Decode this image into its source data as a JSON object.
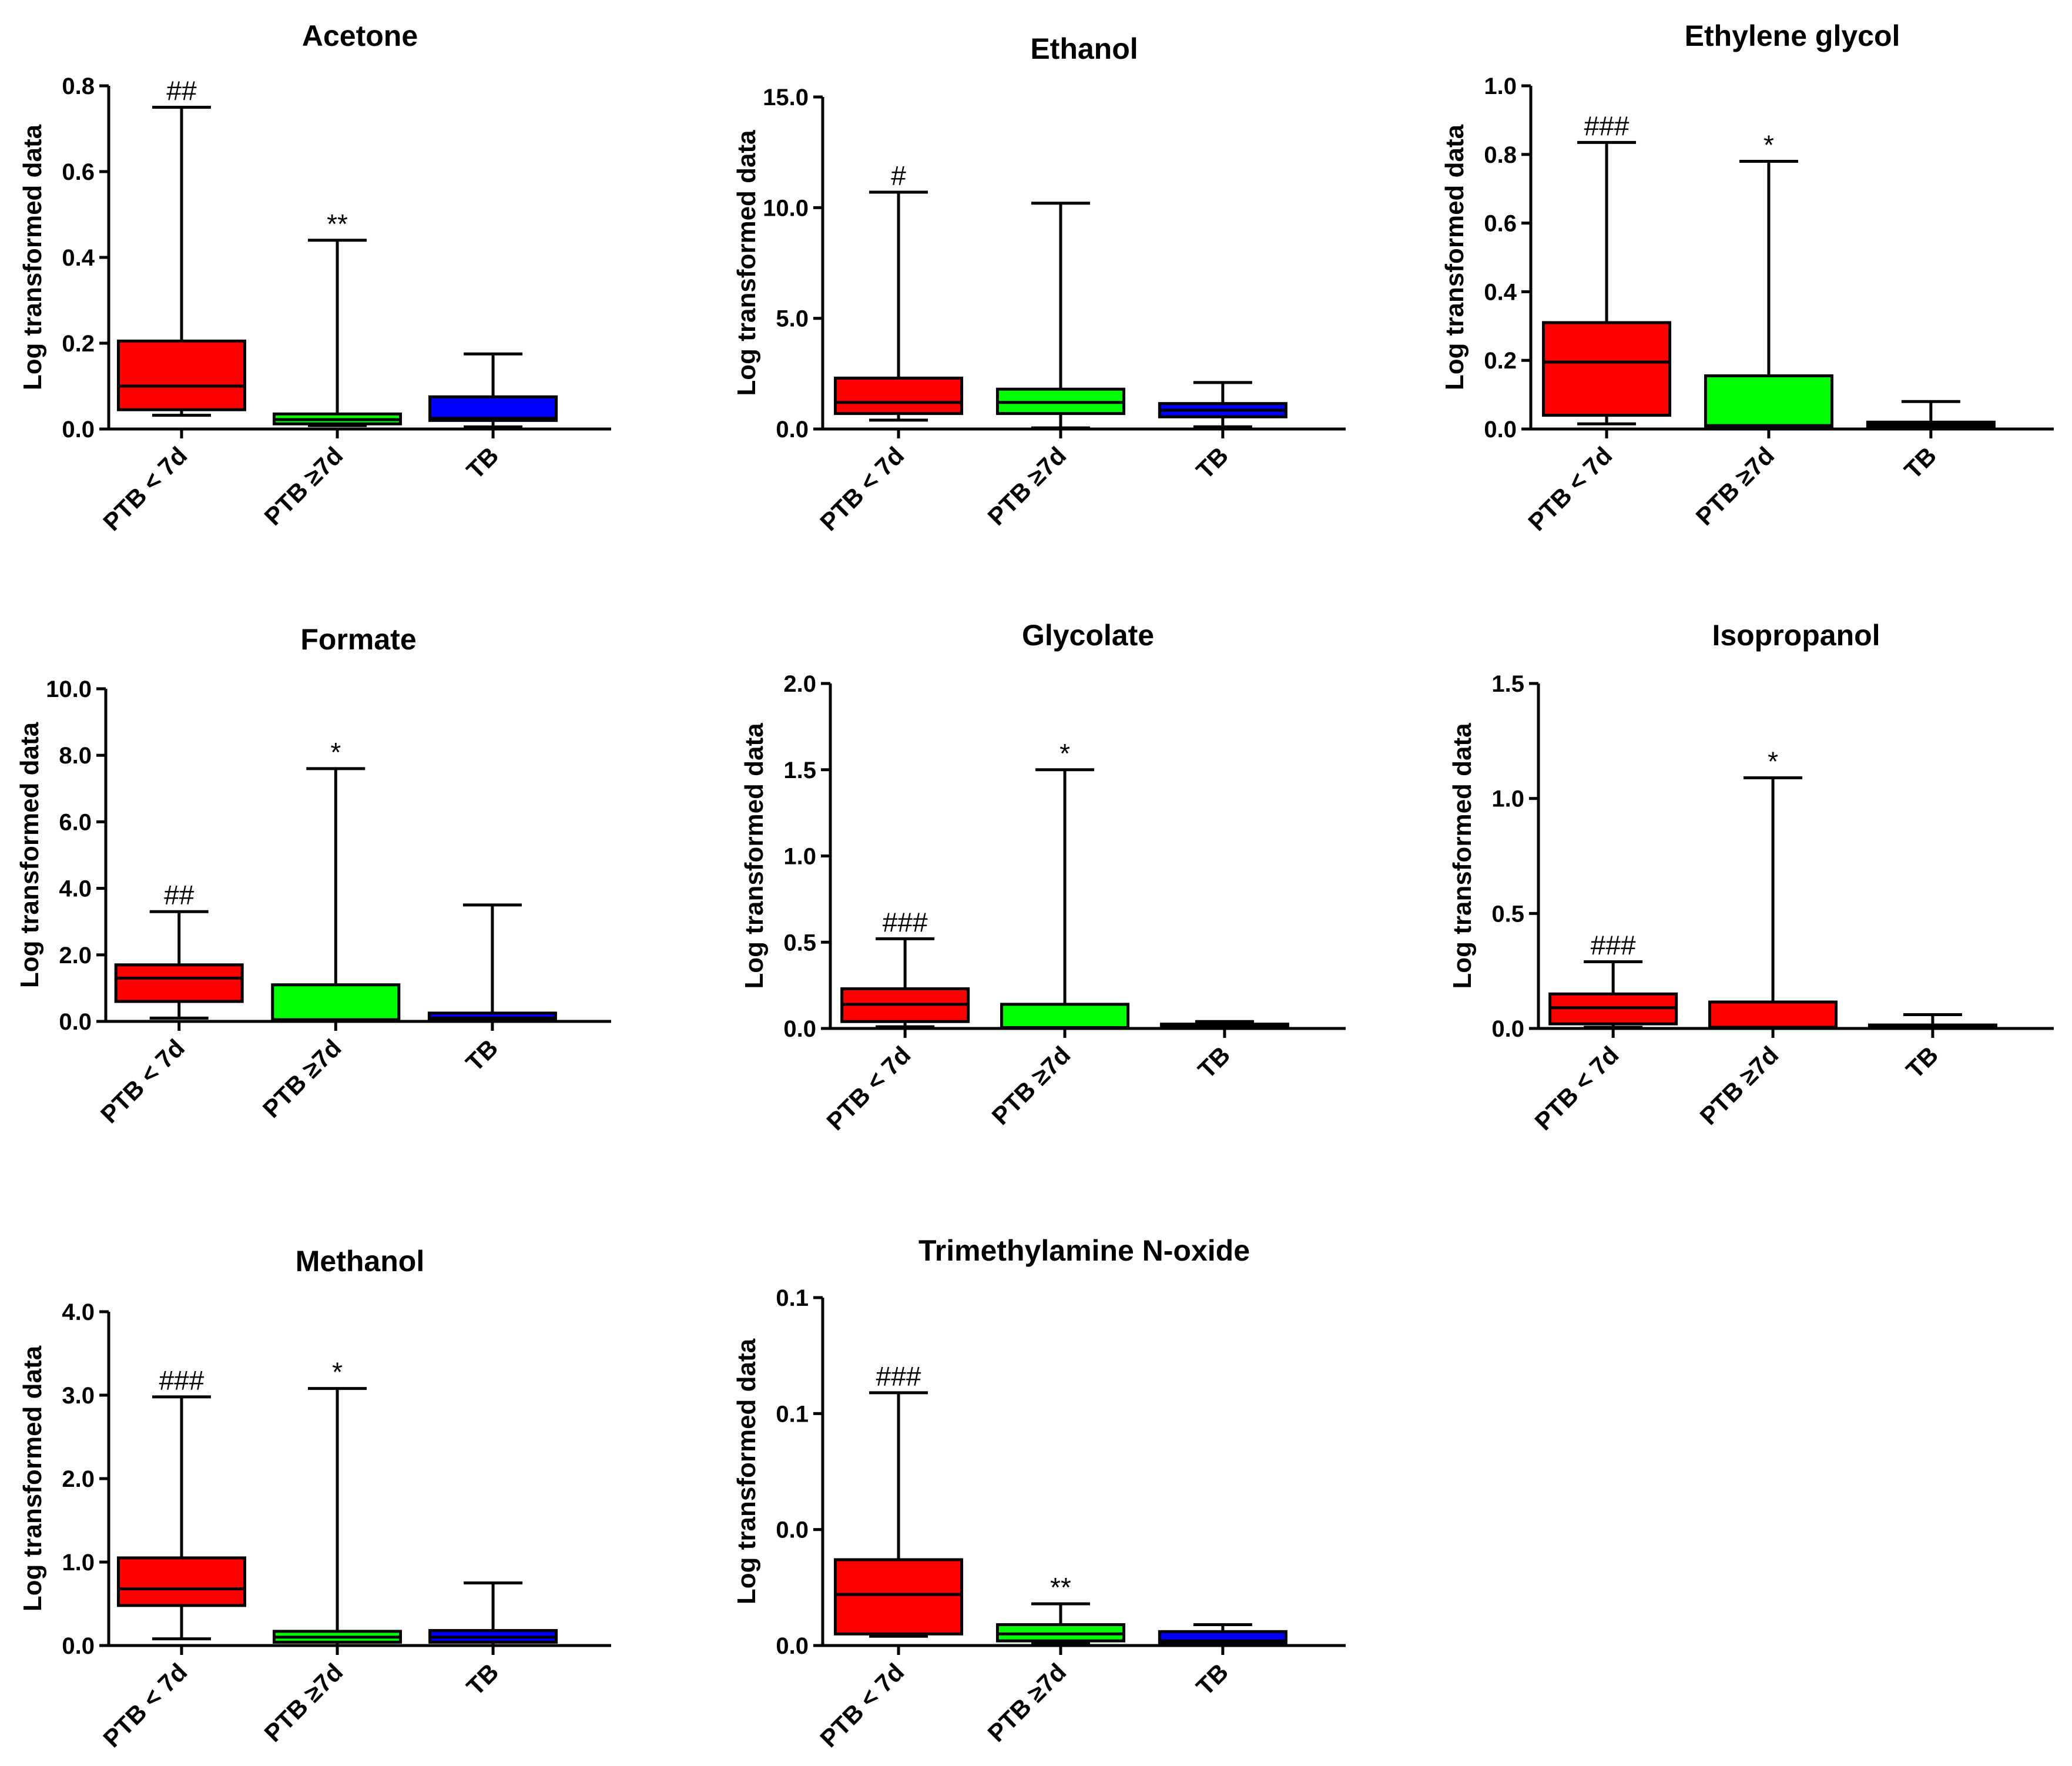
{
  "figure": {
    "aria_label": "Box plots of log transformed metabolite data by group"
  },
  "chart_data": [
    {
      "type": "box",
      "title": "Acetone",
      "ylabel": "Log transformed data",
      "categories": [
        "PTB < 7d",
        "PTB ≥7d",
        "TB"
      ],
      "yticks": [
        "0.0",
        "0.2",
        "0.4",
        "0.6",
        "0.8"
      ],
      "ylim": [
        0,
        0.8
      ],
      "boxes": [
        {
          "category": "PTB < 7d",
          "min": 0.032,
          "q1": 0.045,
          "median": 0.1,
          "q3": 0.205,
          "max": 0.75,
          "color": "#ff0000",
          "annotation": "##"
        },
        {
          "category": "PTB ≥7d",
          "min": 0.008,
          "q1": 0.012,
          "median": 0.022,
          "q3": 0.035,
          "max": 0.44,
          "color": "#00ff00",
          "annotation": "**"
        },
        {
          "category": "TB",
          "min": 0.005,
          "q1": 0.02,
          "median": 0.025,
          "q3": 0.075,
          "max": 0.175,
          "color": "#0000ff",
          "annotation": ""
        }
      ]
    },
    {
      "type": "box",
      "title": "Ethanol",
      "ylabel": "Log transformed data",
      "categories": [
        "PTB < 7d",
        "PTB ≥7d",
        "TB"
      ],
      "yticks": [
        "0.0",
        "5.0",
        "10.0",
        "15.0"
      ],
      "ylim": [
        0,
        15
      ],
      "boxes": [
        {
          "category": "PTB < 7d",
          "min": 0.4,
          "q1": 0.7,
          "median": 1.2,
          "q3": 2.3,
          "max": 10.7,
          "color": "#ff0000",
          "annotation": "#"
        },
        {
          "category": "PTB ≥7d",
          "min": 0.05,
          "q1": 0.7,
          "median": 1.2,
          "q3": 1.8,
          "max": 10.2,
          "color": "#00ff00",
          "annotation": ""
        },
        {
          "category": "TB",
          "min": 0.1,
          "q1": 0.55,
          "median": 0.85,
          "q3": 1.15,
          "max": 2.1,
          "color": "#0000ff",
          "annotation": ""
        }
      ]
    },
    {
      "type": "box",
      "title": "Ethylene glycol",
      "ylabel": "Log transformed data",
      "categories": [
        "PTB < 7d",
        "PTB ≥7d",
        "TB"
      ],
      "yticks": [
        "0.0",
        "0.2",
        "0.4",
        "0.6",
        "0.8",
        "1.0"
      ],
      "ylim": [
        0,
        1.0
      ],
      "boxes": [
        {
          "category": "PTB < 7d",
          "min": 0.015,
          "q1": 0.04,
          "median": 0.195,
          "q3": 0.31,
          "max": 0.835,
          "color": "#ff0000",
          "annotation": "###"
        },
        {
          "category": "PTB ≥7d",
          "min": 0.0,
          "q1": 0.003,
          "median": 0.01,
          "q3": 0.155,
          "max": 0.78,
          "color": "#00ff00",
          "annotation": "*"
        },
        {
          "category": "TB",
          "min": 0.0,
          "q1": 0.005,
          "median": 0.012,
          "q3": 0.02,
          "max": 0.08,
          "color": "#0000ff",
          "annotation": ""
        }
      ]
    },
    {
      "type": "box",
      "title": "Formate",
      "ylabel": "Log transformed data",
      "categories": [
        "PTB < 7d",
        "PTB ≥7d",
        "TB"
      ],
      "yticks": [
        "0.0",
        "2.0",
        "4.0",
        "6.0",
        "8.0",
        "10.0"
      ],
      "ylim": [
        0,
        10
      ],
      "boxes": [
        {
          "category": "PTB < 7d",
          "min": 0.1,
          "q1": 0.6,
          "median": 1.3,
          "q3": 1.7,
          "max": 3.3,
          "color": "#ff0000",
          "annotation": "##"
        },
        {
          "category": "PTB ≥7d",
          "min": 0.0,
          "q1": 0.02,
          "median": 0.05,
          "q3": 1.1,
          "max": 7.6,
          "color": "#00ff00",
          "annotation": "*"
        },
        {
          "category": "TB",
          "min": 0.0,
          "q1": 0.05,
          "median": 0.1,
          "q3": 0.25,
          "max": 3.5,
          "color": "#0000ff",
          "annotation": ""
        }
      ]
    },
    {
      "type": "box",
      "title": "Glycolate",
      "ylabel": "Log transformed data",
      "categories": [
        "PTB < 7d",
        "PTB ≥7d",
        "TB"
      ],
      "yticks": [
        "0.0",
        "0.5",
        "1.0",
        "1.5",
        "2.0"
      ],
      "ylim": [
        0,
        2.0
      ],
      "boxes": [
        {
          "category": "PTB < 7d",
          "min": 0.01,
          "q1": 0.04,
          "median": 0.14,
          "q3": 0.23,
          "max": 0.52,
          "color": "#ff0000",
          "annotation": "###"
        },
        {
          "category": "PTB ≥7d",
          "min": 0.0,
          "q1": 0.0,
          "median": 0.005,
          "q3": 0.14,
          "max": 1.5,
          "color": "#00ff00",
          "annotation": "*"
        },
        {
          "category": "TB",
          "min": 0.0,
          "q1": 0.005,
          "median": 0.01,
          "q3": 0.025,
          "max": 0.04,
          "color": "#0000ff",
          "annotation": ""
        }
      ]
    },
    {
      "type": "box",
      "title": "Isopropanol",
      "ylabel": "Log transformed data",
      "categories": [
        "PTB < 7d",
        "PTB ≥7d",
        "TB"
      ],
      "yticks": [
        "0.0",
        "0.5",
        "1.0",
        "1.5"
      ],
      "ylim": [
        0,
        1.5
      ],
      "boxes": [
        {
          "category": "PTB < 7d",
          "min": 0.005,
          "q1": 0.02,
          "median": 0.09,
          "q3": 0.15,
          "max": 0.29,
          "color": "#ff0000",
          "annotation": "###"
        },
        {
          "category": "PTB ≥7d",
          "min": 0.0,
          "q1": 0.0,
          "median": 0.005,
          "q3": 0.115,
          "max": 1.09,
          "color": "#ff0000",
          "annotation": "*"
        },
        {
          "category": "TB",
          "min": 0.0,
          "q1": 0.003,
          "median": 0.008,
          "q3": 0.015,
          "max": 0.06,
          "color": "#0000ff",
          "annotation": ""
        }
      ]
    },
    {
      "type": "box",
      "title": "Methanol",
      "ylabel": "Log transformed data",
      "categories": [
        "PTB < 7d",
        "PTB ≥7d",
        "TB"
      ],
      "yticks": [
        "0.0",
        "1.0",
        "2.0",
        "3.0",
        "4.0"
      ],
      "ylim": [
        0,
        4.0
      ],
      "boxes": [
        {
          "category": "PTB < 7d",
          "min": 0.08,
          "q1": 0.48,
          "median": 0.68,
          "q3": 1.05,
          "max": 2.98,
          "color": "#ff0000",
          "annotation": "###"
        },
        {
          "category": "PTB ≥7d",
          "min": 0.0,
          "q1": 0.04,
          "median": 0.1,
          "q3": 0.17,
          "max": 3.08,
          "color": "#00ff00",
          "annotation": "*"
        },
        {
          "category": "TB",
          "min": 0.0,
          "q1": 0.04,
          "median": 0.1,
          "q3": 0.18,
          "max": 0.75,
          "color": "#0000ff",
          "annotation": ""
        }
      ]
    },
    {
      "type": "box",
      "title": "Trimethylamine N-oxide",
      "ylabel": "Log transformed data",
      "categories": [
        "PTB < 7d",
        "PTB ≥7d",
        "TB"
      ],
      "yticks": [
        "0.0",
        "0.0",
        "0.1",
        "0.1"
      ],
      "ylim": [
        0,
        0.15
      ],
      "boxes": [
        {
          "category": "PTB < 7d",
          "min": 0.004,
          "q1": 0.005,
          "median": 0.022,
          "q3": 0.037,
          "max": 0.109,
          "color": "#ff0000",
          "annotation": "###"
        },
        {
          "category": "PTB ≥7d",
          "min": 0.001,
          "q1": 0.002,
          "median": 0.005,
          "q3": 0.009,
          "max": 0.018,
          "color": "#00ff00",
          "annotation": "**"
        },
        {
          "category": "TB",
          "min": 0.0,
          "q1": 0.001,
          "median": 0.002,
          "q3": 0.006,
          "max": 0.009,
          "color": "#0000ff",
          "annotation": ""
        }
      ]
    }
  ]
}
